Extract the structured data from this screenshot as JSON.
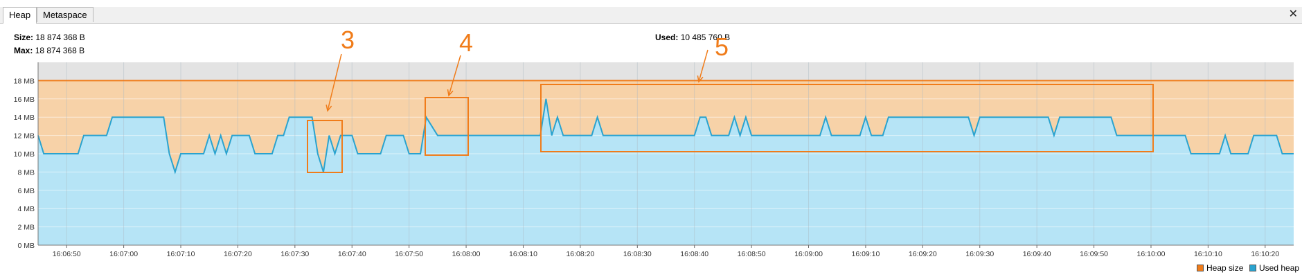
{
  "tabs": [
    {
      "label": "Heap",
      "active": true
    },
    {
      "label": "Metaspace",
      "active": false
    }
  ],
  "close_icon": "close-icon",
  "stats": {
    "size_label": "Size:",
    "size_value": "18 874 368 B",
    "max_label": "Max:",
    "max_value": "18 874 368 B",
    "used_label": "Used:",
    "used_value": "10 485 760 B"
  },
  "colors": {
    "heap_size": "#f07c1a",
    "heap_fill": "#f7d2a8",
    "used_line": "#2aa3cf",
    "used_fill": "#b6e4f6",
    "annotation": "#f07c1a"
  },
  "legend": [
    {
      "label": "Heap size",
      "color": "#f07c1a"
    },
    {
      "label": "Used heap",
      "color": "#2aa3cf"
    }
  ],
  "annotations": [
    "3",
    "4",
    "5"
  ],
  "chart_data": {
    "type": "area",
    "xlabel": "",
    "ylabel": "",
    "x_range": [
      "16:06:45",
      "16:10:25"
    ],
    "ylim": [
      0,
      20
    ],
    "y_ticks": [
      "0 MB",
      "2 MB",
      "4 MB",
      "6 MB",
      "8 MB",
      "10 MB",
      "12 MB",
      "14 MB",
      "16 MB",
      "18 MB"
    ],
    "x_ticks": [
      "16:06:50",
      "16:07:00",
      "16:07:10",
      "16:07:20",
      "16:07:30",
      "16:07:40",
      "16:07:50",
      "16:08:00",
      "16:08:10",
      "16:08:20",
      "16:08:30",
      "16:08:40",
      "16:08:50",
      "16:09:00",
      "16:09:10",
      "16:09:20",
      "16:09:30",
      "16:09:40",
      "16:09:50",
      "16:10:00",
      "16:10:10",
      "16:10:20"
    ],
    "grid": true,
    "legend_position": "bottom-right",
    "series": [
      {
        "name": "Heap size",
        "constant": 18
      },
      {
        "name": "Used heap",
        "x": [
          "16:06:45",
          "16:06:46",
          "16:06:52",
          "16:06:53",
          "16:06:57",
          "16:06:58",
          "16:07:07",
          "16:07:08",
          "16:07:09",
          "16:07:10",
          "16:07:14",
          "16:07:15",
          "16:07:16",
          "16:07:17",
          "16:07:18",
          "16:07:19",
          "16:07:22",
          "16:07:23",
          "16:07:26",
          "16:07:27",
          "16:07:28",
          "16:07:29",
          "16:07:33",
          "16:07:34",
          "16:07:35",
          "16:07:36",
          "16:07:37",
          "16:07:38",
          "16:07:40",
          "16:07:41",
          "16:07:45",
          "16:07:46",
          "16:07:49",
          "16:07:50",
          "16:07:52",
          "16:07:53",
          "16:07:55",
          "16:07:56",
          "16:07:57",
          "16:08:13",
          "16:08:14",
          "16:08:15",
          "16:08:16",
          "16:08:17",
          "16:08:18",
          "16:08:22",
          "16:08:23",
          "16:08:24",
          "16:08:40",
          "16:08:41",
          "16:08:42",
          "16:08:43",
          "16:08:46",
          "16:08:47",
          "16:08:48",
          "16:08:49",
          "16:08:50",
          "16:08:51",
          "16:09:02",
          "16:09:03",
          "16:09:04",
          "16:09:09",
          "16:09:10",
          "16:09:11",
          "16:09:13",
          "16:09:14",
          "16:09:28",
          "16:09:29",
          "16:09:30",
          "16:09:42",
          "16:09:43",
          "16:09:44",
          "16:09:53",
          "16:09:54",
          "16:10:06",
          "16:10:07",
          "16:10:12",
          "16:10:13",
          "16:10:14",
          "16:10:17",
          "16:10:18",
          "16:10:22",
          "16:10:23",
          "16:10:25"
        ],
        "y": [
          12,
          10,
          10,
          12,
          12,
          14,
          14,
          10,
          8,
          10,
          10,
          12,
          10,
          12,
          10,
          12,
          12,
          10,
          10,
          12,
          12,
          14,
          14,
          10,
          8,
          12,
          10,
          12,
          12,
          10,
          10,
          12,
          12,
          10,
          10,
          14,
          12,
          12,
          12,
          12,
          16,
          12,
          14,
          12,
          12,
          12,
          14,
          12,
          12,
          14,
          14,
          12,
          12,
          14,
          12,
          14,
          12,
          12,
          12,
          14,
          12,
          12,
          14,
          12,
          12,
          14,
          14,
          12,
          14,
          14,
          12,
          14,
          14,
          12,
          12,
          10,
          10,
          12,
          10,
          10,
          12,
          12,
          10,
          10
        ]
      }
    ]
  }
}
